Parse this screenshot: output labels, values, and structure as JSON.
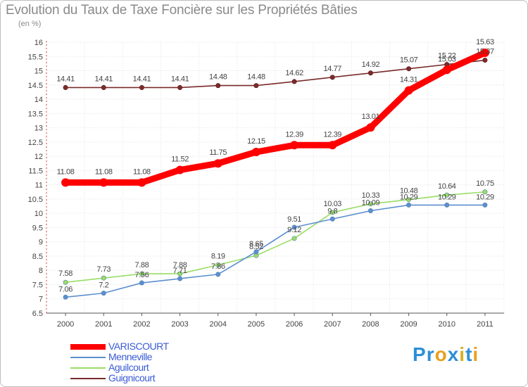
{
  "chart_data": {
    "type": "line",
    "title": "Evolution du Taux de Taxe Foncière sur les Propriétés Bâties",
    "ylabel": "(en %)",
    "xlabel": "",
    "x": [
      "2000",
      "2001",
      "2002",
      "2003",
      "2004",
      "2005",
      "2006",
      "2007",
      "2008",
      "2009",
      "2010",
      "2011"
    ],
    "ylim": [
      6.5,
      16
    ],
    "yticks": [
      "6.5",
      "7",
      "7.5",
      "8",
      "8.5",
      "9",
      "9.5",
      "10",
      "10.5",
      "11",
      "11.5",
      "12",
      "12.5",
      "13",
      "13.5",
      "14",
      "14.5",
      "15",
      "15.5",
      "16"
    ],
    "series": [
      {
        "name": "VARISCOURT",
        "color": "#ff0000",
        "values": [
          11.08,
          11.08,
          11.08,
          11.52,
          11.75,
          12.15,
          12.39,
          12.39,
          13.01,
          14.31,
          15.03,
          15.63
        ],
        "labels": [
          "11.08",
          "11.08",
          "11.08",
          "11.52",
          "11.75",
          "12.15",
          "12.39",
          "12.39",
          "13.01",
          "14.31",
          "15.03",
          "15.63"
        ]
      },
      {
        "name": "Menneville",
        "color": "#5b8fcf",
        "values": [
          7.06,
          7.2,
          7.56,
          7.71,
          7.86,
          8.65,
          9.51,
          9.8,
          10.09,
          10.29,
          10.29,
          10.29
        ],
        "labels": [
          "7.06",
          "7.2",
          "7.56",
          "7.71",
          "7.86",
          "8.65",
          "9.51",
          "9.8",
          "10.09",
          "10.29",
          "10.29",
          "10.29"
        ]
      },
      {
        "name": "Aguilcourt",
        "color": "#99dd66",
        "values": [
          7.58,
          7.73,
          7.88,
          7.88,
          8.19,
          8.52,
          9.12,
          10.03,
          10.33,
          10.48,
          10.64,
          10.75
        ],
        "labels": [
          "7.58",
          "7.73",
          "7.88",
          "7.88",
          "8.19",
          "8.52",
          "9.12",
          "10.03",
          "10.33",
          "10.48",
          "10.64",
          "10.75"
        ]
      },
      {
        "name": "Guignicourt",
        "color": "#7a2b2b",
        "values": [
          14.41,
          14.41,
          14.41,
          14.41,
          14.48,
          14.48,
          14.62,
          14.77,
          14.92,
          15.07,
          15.22,
          15.37
        ],
        "labels": [
          "14.41",
          "14.41",
          "14.41",
          "14.41",
          "14.48",
          "14.48",
          "14.62",
          "14.77",
          "14.92",
          "15.07",
          "15.22",
          "15.37"
        ]
      }
    ]
  },
  "logo": {
    "text": "Proxiti",
    "letters": [
      "P",
      "r",
      "o",
      "x",
      "i",
      "t",
      "i"
    ],
    "colors": [
      "#2d8fd6",
      "#2d8fd6",
      "#e8a020",
      "#2d8fd6",
      "#d8b020",
      "#2d8fd6",
      "#e8a020"
    ]
  }
}
